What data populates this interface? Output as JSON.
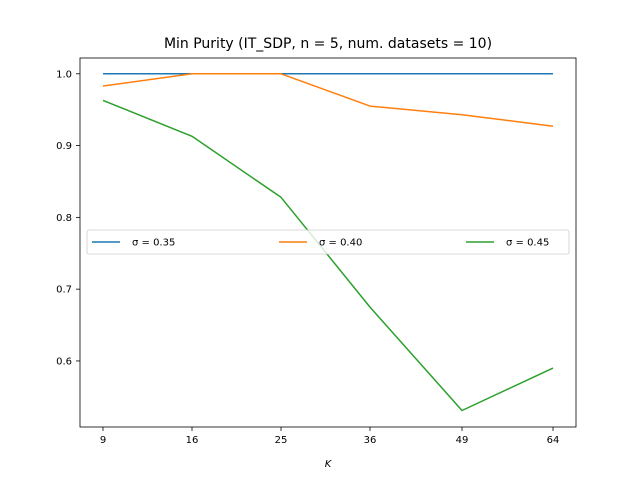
{
  "chart_data": {
    "type": "line",
    "title": "Min Purity (IT_SDP, n = 5, num. datasets = 10)",
    "xlabel": "K",
    "ylabel": "",
    "x": [
      9,
      16,
      25,
      36,
      49,
      64
    ],
    "x_tick_labels": [
      "9",
      "16",
      "25",
      "36",
      "49",
      "64"
    ],
    "y_ticks": [
      0.6,
      0.7,
      0.8,
      0.9,
      1.0
    ],
    "y_tick_labels": [
      "0.6",
      "0.7",
      "0.8",
      "0.9",
      "1.0"
    ],
    "ylim": [
      0.508,
      1.022
    ],
    "grid": false,
    "legend_position": "center",
    "series": [
      {
        "name": "σ = 0.35",
        "color": "#1f77b4",
        "values": [
          1.0,
          1.0,
          1.0,
          1.0,
          1.0,
          1.0
        ]
      },
      {
        "name": "σ = 0.40",
        "color": "#ff7f0e",
        "values": [
          0.983,
          1.0,
          1.0,
          0.955,
          0.943,
          0.927
        ]
      },
      {
        "name": "σ = 0.45",
        "color": "#2ca02c",
        "values": [
          0.963,
          0.913,
          0.828,
          0.675,
          0.531,
          0.59
        ]
      }
    ]
  }
}
